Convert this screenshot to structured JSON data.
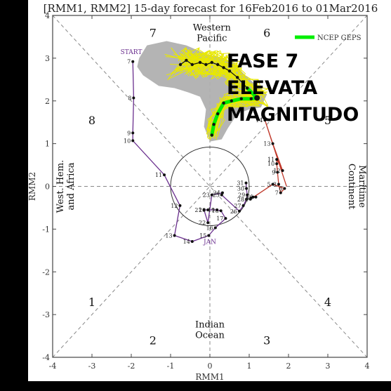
{
  "chart_data": {
    "type": "scatter",
    "title": "[RMM1, RMM2] 15-day forecast for 16Feb2016 to 01Mar2016",
    "xlabel": "RMM1",
    "ylabel": "RMM2",
    "xlim": [
      -4,
      4
    ],
    "ylim": [
      -4,
      4
    ],
    "ticks": [
      -4,
      -3,
      -2,
      -1,
      0,
      1,
      2,
      3,
      4
    ],
    "tick_labels": [
      "-4",
      "-3",
      "-2",
      "-1",
      "0",
      "1",
      "2",
      "3",
      "4"
    ],
    "grid": false,
    "legend": {
      "position": "top-right",
      "label": "NCEP GEPS",
      "color": "#00ee00"
    },
    "phase_numbers": [
      "1",
      "2",
      "3",
      "4",
      "5",
      "6",
      "7",
      "8"
    ],
    "region_labels": {
      "western_pacific": "Western Pacific",
      "maritime_continent": "Maritime Continent",
      "indian_ocean": "Indian Ocean",
      "west_hem": "West. Hem. and Africa"
    },
    "annotations": {
      "start": "START",
      "jan": "JAN"
    },
    "overlay_text": [
      "FASE 7",
      "ELEVATA",
      "MAGNITUDO"
    ],
    "colors": {
      "purple": "#6a2f8e",
      "red": "#c0392b",
      "ensemble": "#e8e800",
      "spread": "#b0b0b0",
      "mean": "#00ee00"
    },
    "purple_track": {
      "labels": [
        "7",
        "8",
        "9",
        "10",
        "11",
        "12",
        "13",
        "14",
        "15",
        "16",
        "17",
        "18",
        "19",
        "20",
        "21",
        "22",
        "23",
        "24",
        "25",
        "26",
        "27",
        "28",
        "29",
        "30",
        "31"
      ],
      "x": [
        -1.96,
        -1.94,
        -1.96,
        -1.96,
        -1.16,
        -0.76,
        -0.9,
        -0.45,
        -0.03,
        0.14,
        0.4,
        0.28,
        0.18,
        -0.05,
        -0.15,
        -0.05,
        0.05,
        0.32,
        0.3,
        0.75,
        0.85,
        0.93,
        0.95,
        0.93,
        0.92
      ],
      "y": [
        2.92,
        2.07,
        1.25,
        1.07,
        0.27,
        -0.45,
        -1.15,
        -1.29,
        -1.15,
        -0.97,
        -0.75,
        -0.57,
        -0.55,
        -0.55,
        -0.55,
        -0.85,
        -0.2,
        -0.15,
        -0.2,
        -0.58,
        -0.45,
        -0.3,
        -0.2,
        -0.05,
        0.08
      ]
    },
    "red_track": {
      "labels": [
        "1",
        "2",
        "3",
        "4",
        "5",
        "6",
        "7",
        "8",
        "9",
        "10",
        "11",
        "12",
        "13",
        "14"
      ],
      "x": [
        1.17,
        1.1,
        1.05,
        1.03,
        1.6,
        1.9,
        1.8,
        1.75,
        1.72,
        1.7,
        1.7,
        1.85,
        1.6,
        1.4
      ],
      "y": [
        -0.25,
        -0.25,
        -0.27,
        -0.3,
        0.05,
        -0.05,
        -0.15,
        0.05,
        0.33,
        0.53,
        0.63,
        0.37,
        1.0,
        1.55
      ]
    },
    "red_track_end": {
      "x": 1.95,
      "y": 0.0
    },
    "ensemble_mean": {
      "x": [
        0.05,
        0.1,
        0.2,
        0.35,
        0.55,
        0.8,
        1.05,
        1.2,
        0.95,
        0.7,
        0.5,
        0.35,
        0.2,
        0.05,
        -0.1,
        -0.25,
        -0.45,
        -0.6,
        -0.75
      ],
      "y": [
        1.2,
        1.45,
        1.7,
        1.95,
        2.0,
        2.05,
        2.05,
        2.07,
        2.3,
        2.55,
        2.7,
        2.78,
        2.85,
        2.9,
        2.85,
        2.9,
        2.85,
        2.95,
        2.85
      ]
    }
  }
}
